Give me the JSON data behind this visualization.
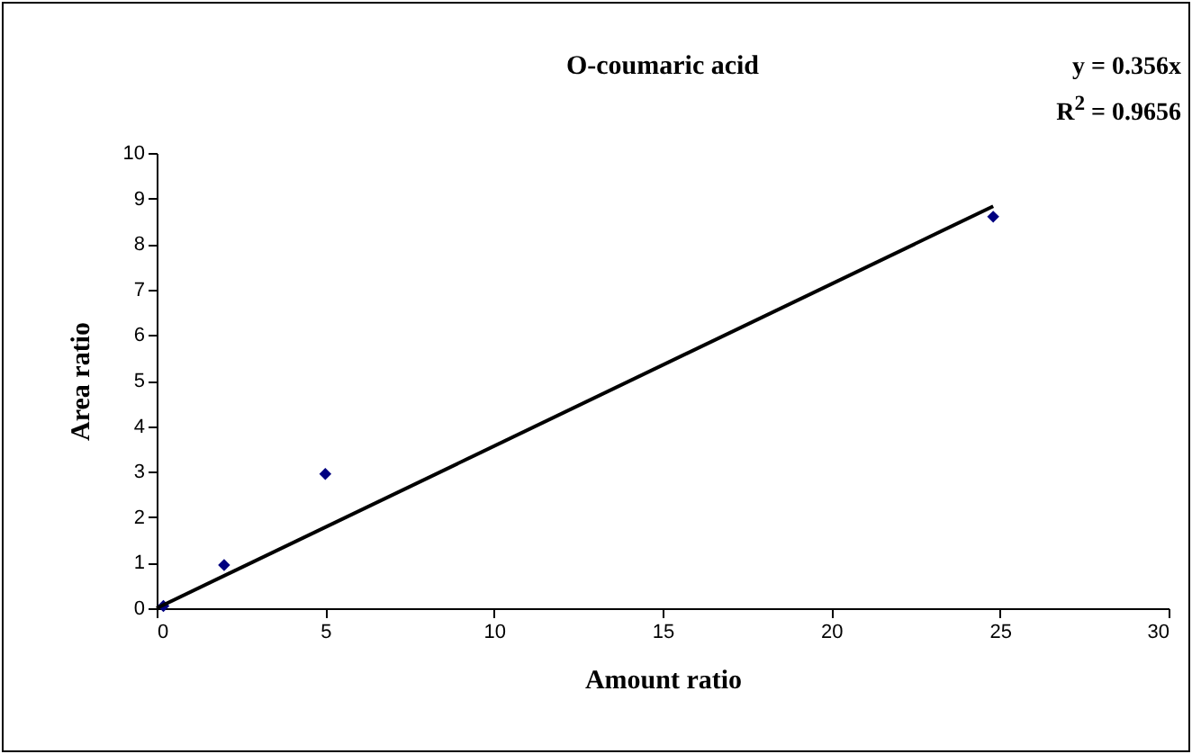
{
  "chart_data": {
    "type": "scatter",
    "title": "O-coumaric acid",
    "xlabel": "Amount ratio",
    "ylabel": "Area ratio",
    "x": [
      0.2,
      2.0,
      5.0,
      24.8
    ],
    "series": [
      {
        "color": "#000080",
        "marker": "diamond",
        "values": [
          0.05,
          0.95,
          2.95,
          8.6
        ]
      },
      {
        "type": "line",
        "color": "#000000",
        "marker": "none",
        "line_style": "solid",
        "x": [
          0,
          24.8
        ],
        "values": [
          0,
          8.83
        ]
      }
    ],
    "xlim": [
      0,
      30
    ],
    "xticks": [
      0,
      5,
      10,
      15,
      20,
      25,
      30
    ],
    "ylim": [
      0,
      10
    ],
    "yticks": [
      0,
      1,
      2,
      3,
      4,
      5,
      6,
      7,
      8,
      9,
      10
    ],
    "grid": false,
    "annotations": [
      "y = 0.356x",
      "R$^{2}$ = 0.9656"
    ]
  }
}
